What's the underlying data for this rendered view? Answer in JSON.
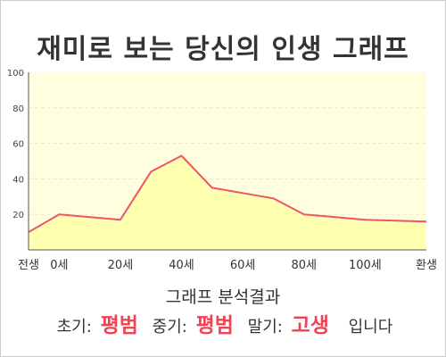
{
  "title": "재미로 보는 당신의 인생 그래프",
  "colors": {
    "plot_bg": "#ffffe0",
    "fill": "#ffffb0",
    "line": "#ee5566",
    "grid": "#e6e6c8",
    "axis": "#555555",
    "highlight": "#ee4455"
  },
  "chart_data": {
    "type": "area",
    "title": "재미로 보는 당신의 인생 그래프",
    "x": [
      -10,
      0,
      20,
      30,
      40,
      50,
      60,
      70,
      80,
      100,
      120
    ],
    "x_tick_values": [
      -10,
      0,
      20,
      40,
      60,
      80,
      100,
      120
    ],
    "x_tick_labels": [
      "전생",
      "0세",
      "20세",
      "40세",
      "60세",
      "80세",
      "100세",
      "환생"
    ],
    "y": [
      10,
      20,
      17,
      44,
      53,
      35,
      32,
      29,
      20,
      17,
      16
    ],
    "y_ticks": [
      20,
      40,
      60,
      80,
      100
    ],
    "ylim": [
      0,
      100
    ],
    "xlim": [
      -10,
      120
    ],
    "grid": true,
    "xlabel": "",
    "ylabel": ""
  },
  "result": {
    "heading": "그래프 분석결과",
    "early_label": "초기:",
    "early_value": "평범",
    "middle_label": "중기:",
    "middle_value": "평범",
    "late_label": "말기:",
    "late_value": "고생",
    "suffix": "입니다"
  }
}
